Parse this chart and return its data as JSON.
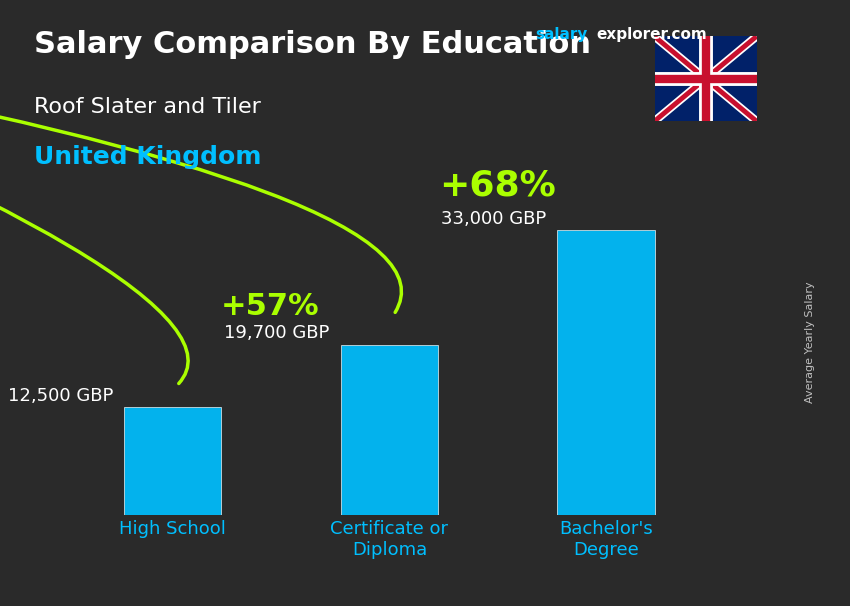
{
  "title": "Salary Comparison By Education",
  "subtitle": "Roof Slater and Tiler",
  "country": "United Kingdom",
  "ylabel": "Average Yearly Salary",
  "website": "salaryexplorer.com",
  "website_salary": "salary",
  "website_explorer": "explorer",
  "categories": [
    "High School",
    "Certificate or\nDiploma",
    "Bachelor's\nDegree"
  ],
  "values": [
    12500,
    19700,
    33000
  ],
  "value_labels": [
    "12,500 GBP",
    "19,700 GBP",
    "33,000 GBP"
  ],
  "bar_color": "#00BFFF",
  "bar_color_edge": "#00A0CC",
  "pct_labels": [
    "+57%",
    "+68%"
  ],
  "pct_color": "#AAFF00",
  "bg_color": "#1a1a2e",
  "text_color_white": "#FFFFFF",
  "text_color_cyan": "#00BFFF",
  "title_fontsize": 22,
  "subtitle_fontsize": 16,
  "country_fontsize": 18,
  "bar_label_fontsize": 13,
  "pct_fontsize": 22,
  "tick_label_fontsize": 13,
  "ylim": [
    0,
    40000
  ],
  "bar_width": 0.45
}
